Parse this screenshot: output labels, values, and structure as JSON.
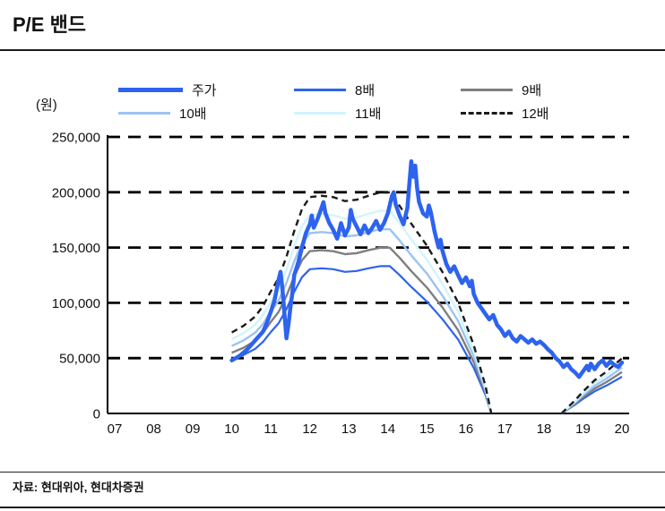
{
  "page": {
    "title": "P/E 밴드",
    "source": "자료: 현대위아, 현대차증권"
  },
  "chart_data": {
    "type": "line",
    "title": "P/E 밴드",
    "xlabel": "",
    "ylabel_unit": "(원)",
    "ylim": [
      0,
      250000
    ],
    "yticks": [
      0,
      50000,
      100000,
      150000,
      200000,
      250000
    ],
    "ytick_labels": [
      "0",
      "50,000",
      "100,000",
      "150,000",
      "200,000",
      "250,000"
    ],
    "xticks": [
      7,
      8,
      9,
      10,
      11,
      12,
      13,
      14,
      15,
      16,
      17,
      18,
      19,
      20
    ],
    "xtick_labels": [
      "07",
      "08",
      "09",
      "10",
      "11",
      "12",
      "13",
      "14",
      "15",
      "16",
      "17",
      "18",
      "19",
      "20"
    ],
    "grid": "horizontal-dashed",
    "legend_position": "top",
    "series": [
      {
        "key": "price",
        "label": "주가",
        "multiple": null,
        "color": "#2d63ee",
        "width": 4.5,
        "dash": null
      },
      {
        "key": "x8",
        "label": "8배",
        "multiple": 8,
        "color": "#2d63ee",
        "width": 2.2,
        "dash": null
      },
      {
        "key": "x9",
        "label": "9배",
        "multiple": 9,
        "color": "#7f7f7f",
        "width": 2.4,
        "dash": null
      },
      {
        "key": "x10",
        "label": "10배",
        "multiple": 10,
        "color": "#9cc3f3",
        "width": 2.4,
        "dash": null
      },
      {
        "key": "x11",
        "label": "11배",
        "multiple": 11,
        "color": "#d2f4fc",
        "width": 2.4,
        "dash": null
      },
      {
        "key": "x12",
        "label": "12배",
        "multiple": 12,
        "color": "#1b1b1b",
        "width": 2.4,
        "dash": [
          7,
          5
        ]
      }
    ],
    "eps_points": [
      [
        10,
        6100
      ],
      [
        10.3,
        6600
      ],
      [
        10.6,
        7300
      ],
      [
        10.8,
        8100
      ],
      [
        11,
        9200
      ],
      [
        11.2,
        10200
      ],
      [
        11.4,
        11800
      ],
      [
        11.6,
        13750
      ],
      [
        11.8,
        15400
      ],
      [
        12,
        16300
      ],
      [
        12.3,
        16400
      ],
      [
        12.6,
        16300
      ],
      [
        12.9,
        16000
      ],
      [
        13.2,
        16100
      ],
      [
        13.5,
        16400
      ],
      [
        13.8,
        16650
      ],
      [
        14.05,
        16650
      ],
      [
        14.3,
        15650
      ],
      [
        14.6,
        14300
      ],
      [
        15,
        12650
      ],
      [
        15.4,
        10650
      ],
      [
        15.8,
        8350
      ],
      [
        16.2,
        5150
      ],
      [
        16.5,
        2100
      ],
      [
        16.65,
        0
      ],
      null,
      [
        18.45,
        0
      ],
      [
        18.8,
        1000
      ],
      [
        19,
        1650
      ],
      [
        19.3,
        2500
      ],
      [
        19.6,
        3150
      ],
      [
        20,
        4150
      ]
    ],
    "price_points": [
      [
        10,
        48000
      ],
      [
        10.1,
        50000
      ],
      [
        10.2,
        52000
      ],
      [
        10.3,
        55000
      ],
      [
        10.4,
        58000
      ],
      [
        10.5,
        62000
      ],
      [
        10.6,
        66000
      ],
      [
        10.7,
        70000
      ],
      [
        10.8,
        74000
      ],
      [
        10.9,
        82000
      ],
      [
        11,
        92000
      ],
      [
        11.1,
        103000
      ],
      [
        11.2,
        121000
      ],
      [
        11.25,
        128000
      ],
      [
        11.3,
        112000
      ],
      [
        11.35,
        90000
      ],
      [
        11.4,
        68000
      ],
      [
        11.45,
        80000
      ],
      [
        11.5,
        95000
      ],
      [
        11.55,
        108000
      ],
      [
        11.6,
        125000
      ],
      [
        11.7,
        136000
      ],
      [
        11.8,
        150000
      ],
      [
        11.9,
        163000
      ],
      [
        12,
        171000
      ],
      [
        12.05,
        179000
      ],
      [
        12.1,
        168000
      ],
      [
        12.2,
        176000
      ],
      [
        12.3,
        186000
      ],
      [
        12.35,
        191000
      ],
      [
        12.4,
        181000
      ],
      [
        12.5,
        172000
      ],
      [
        12.6,
        166000
      ],
      [
        12.7,
        158000
      ],
      [
        12.75,
        165000
      ],
      [
        12.8,
        172000
      ],
      [
        12.9,
        161000
      ],
      [
        13,
        168000
      ],
      [
        13.05,
        184000
      ],
      [
        13.1,
        176000
      ],
      [
        13.2,
        169000
      ],
      [
        13.3,
        162000
      ],
      [
        13.4,
        170000
      ],
      [
        13.5,
        163000
      ],
      [
        13.6,
        168000
      ],
      [
        13.7,
        174000
      ],
      [
        13.8,
        166000
      ],
      [
        13.9,
        172000
      ],
      [
        14,
        181000
      ],
      [
        14.1,
        196000
      ],
      [
        14.15,
        200000
      ],
      [
        14.2,
        189000
      ],
      [
        14.3,
        179000
      ],
      [
        14.4,
        171000
      ],
      [
        14.5,
        186000
      ],
      [
        14.55,
        207000
      ],
      [
        14.6,
        228000
      ],
      [
        14.65,
        214000
      ],
      [
        14.7,
        224000
      ],
      [
        14.75,
        204000
      ],
      [
        14.8,
        191000
      ],
      [
        14.9,
        181000
      ],
      [
        15,
        178000
      ],
      [
        15.05,
        188000
      ],
      [
        15.1,
        182000
      ],
      [
        15.2,
        164000
      ],
      [
        15.3,
        150000
      ],
      [
        15.35,
        157000
      ],
      [
        15.4,
        147000
      ],
      [
        15.5,
        135000
      ],
      [
        15.6,
        128000
      ],
      [
        15.7,
        133000
      ],
      [
        15.8,
        125000
      ],
      [
        15.9,
        118000
      ],
      [
        16,
        123000
      ],
      [
        16.1,
        115000
      ],
      [
        16.15,
        120000
      ],
      [
        16.2,
        108000
      ],
      [
        16.3,
        100000
      ],
      [
        16.4,
        95000
      ],
      [
        16.5,
        90000
      ],
      [
        16.6,
        85000
      ],
      [
        16.7,
        89000
      ],
      [
        16.8,
        80000
      ],
      [
        16.9,
        76000
      ],
      [
        17,
        70000
      ],
      [
        17.1,
        74000
      ],
      [
        17.2,
        68000
      ],
      [
        17.3,
        65000
      ],
      [
        17.4,
        70000
      ],
      [
        17.5,
        67000
      ],
      [
        17.6,
        64000
      ],
      [
        17.7,
        67000
      ],
      [
        17.8,
        63000
      ],
      [
        17.9,
        65000
      ],
      [
        18,
        62000
      ],
      [
        18.1,
        58000
      ],
      [
        18.2,
        55000
      ],
      [
        18.3,
        50000
      ],
      [
        18.4,
        47000
      ],
      [
        18.5,
        42000
      ],
      [
        18.6,
        45000
      ],
      [
        18.7,
        40000
      ],
      [
        18.8,
        37000
      ],
      [
        18.9,
        33000
      ],
      [
        19,
        38000
      ],
      [
        19.1,
        43000
      ],
      [
        19.15,
        39000
      ],
      [
        19.2,
        45000
      ],
      [
        19.3,
        40000
      ],
      [
        19.4,
        45000
      ],
      [
        19.5,
        48000
      ],
      [
        19.6,
        43000
      ],
      [
        19.7,
        47000
      ],
      [
        19.8,
        44000
      ],
      [
        19.9,
        42000
      ],
      [
        20,
        46000
      ]
    ]
  }
}
